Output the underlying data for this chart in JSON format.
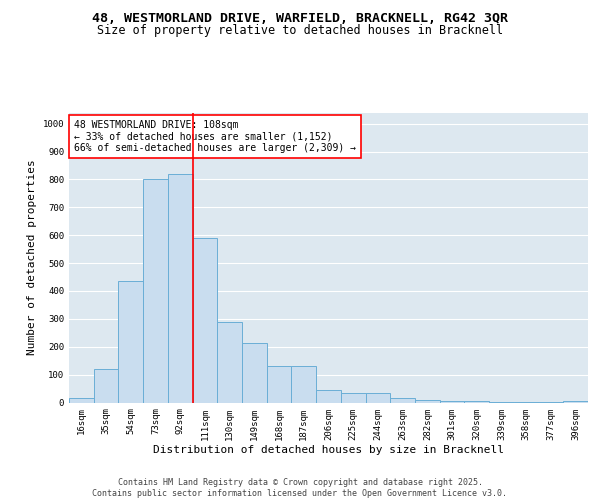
{
  "title_line1": "48, WESTMORLAND DRIVE, WARFIELD, BRACKNELL, RG42 3QR",
  "title_line2": "Size of property relative to detached houses in Bracknell",
  "xlabel": "Distribution of detached houses by size in Bracknell",
  "ylabel": "Number of detached properties",
  "bin_labels": [
    "16sqm",
    "35sqm",
    "54sqm",
    "73sqm",
    "92sqm",
    "111sqm",
    "130sqm",
    "149sqm",
    "168sqm",
    "187sqm",
    "206sqm",
    "225sqm",
    "244sqm",
    "263sqm",
    "282sqm",
    "301sqm",
    "320sqm",
    "339sqm",
    "358sqm",
    "377sqm",
    "396sqm"
  ],
  "bar_heights": [
    15,
    120,
    435,
    800,
    820,
    590,
    290,
    215,
    130,
    130,
    45,
    35,
    35,
    15,
    10,
    5,
    5,
    2,
    2,
    1,
    5
  ],
  "bar_color": "#c9ddef",
  "bar_edge_color": "#6aaed6",
  "vline_color": "red",
  "annotation_text": "48 WESTMORLAND DRIVE: 108sqm\n← 33% of detached houses are smaller (1,152)\n66% of semi-detached houses are larger (2,309) →",
  "annotation_box_color": "white",
  "annotation_box_edge_color": "red",
  "ylim": [
    0,
    1040
  ],
  "yticks": [
    0,
    100,
    200,
    300,
    400,
    500,
    600,
    700,
    800,
    900,
    1000
  ],
  "background_color": "#dde8f0",
  "footer_text": "Contains HM Land Registry data © Crown copyright and database right 2025.\nContains public sector information licensed under the Open Government Licence v3.0.",
  "title_fontsize": 9.5,
  "subtitle_fontsize": 8.5,
  "axis_label_fontsize": 8,
  "tick_fontsize": 6.5,
  "annotation_fontsize": 7,
  "footer_fontsize": 6
}
